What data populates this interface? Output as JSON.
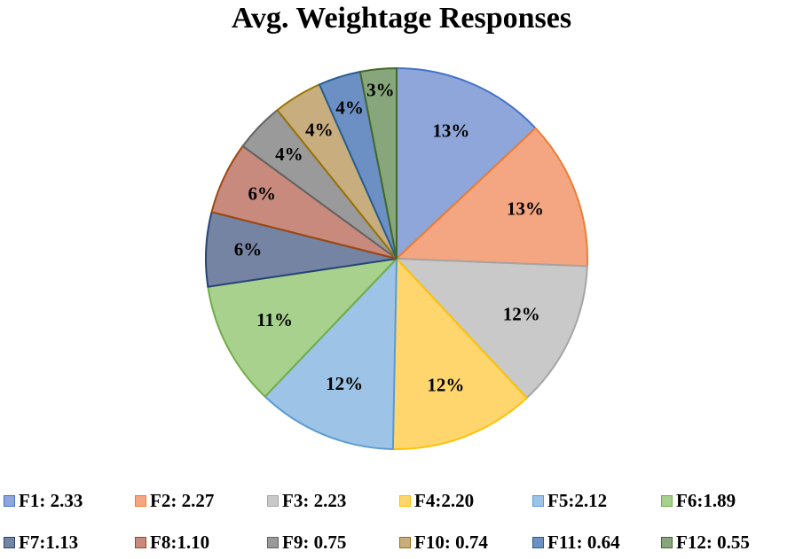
{
  "chart_data": {
    "type": "pie",
    "title": "Avg. Weightage Responses",
    "categories": [
      "F1",
      "F2",
      "F3",
      "F4",
      "F5",
      "F6",
      "F7",
      "F8",
      "F9",
      "F10",
      "F11",
      "F12"
    ],
    "values": [
      2.33,
      2.27,
      2.23,
      2.2,
      2.12,
      1.89,
      1.13,
      1.1,
      0.75,
      0.74,
      0.64,
      0.55
    ],
    "slice_labels": [
      "13%",
      "13%",
      "12%",
      "12%",
      "12%",
      "11%",
      "6%",
      "6%",
      "4%",
      "4%",
      "4%",
      "3%"
    ],
    "legend_labels": [
      "F1: 2.33",
      "F2: 2.27",
      "F3: 2.23",
      "F4:2.20",
      "F5:2.12",
      "F6:1.89",
      "F7:1.13",
      "F8:1.10",
      "F9: 0.75",
      "F10: 0.74",
      "F11: 0.64",
      "F12: 0.55"
    ],
    "colors": [
      "#8FA6DA",
      "#F4A582",
      "#C9C9C9",
      "#FFD66E",
      "#9DC3E6",
      "#A9D18E",
      "#7684A4",
      "#C98A7E",
      "#9A9A9A",
      "#C8AE7E",
      "#6D90C4",
      "#87A67C"
    ],
    "edge_colors": [
      "#4472C4",
      "#ED7D31",
      "#A5A5A5",
      "#FFC000",
      "#5B9BD5",
      "#70AD47",
      "#264478",
      "#9E480E",
      "#636363",
      "#997300",
      "#255E91",
      "#43682B"
    ],
    "legend_position": "bottom"
  }
}
